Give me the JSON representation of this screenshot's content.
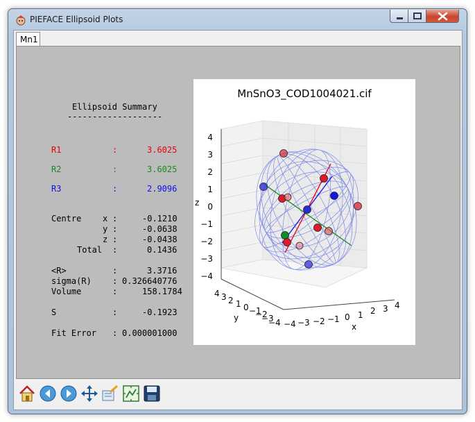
{
  "window": {
    "title": "PIEFACE Ellipsoid Plots"
  },
  "tabs": [
    {
      "label": "Mn1"
    }
  ],
  "summary": {
    "heading": "Ellipsoid Summary",
    "rule": "-------------------",
    "radii": [
      {
        "label": "R1",
        "sep": ":",
        "value": "3.6025",
        "color": "#e8000b"
      },
      {
        "label": "R2",
        "sep": ":",
        "value": "3.6025",
        "color": "#1a8a1a"
      },
      {
        "label": "R3",
        "sep": ":",
        "value": "2.9096",
        "color": "#1010ee"
      }
    ],
    "centre": {
      "label": "Centre",
      "rows": [
        {
          "axis": "x",
          "value": "-0.1210"
        },
        {
          "axis": "y",
          "value": "-0.0638"
        },
        {
          "axis": "z",
          "value": "-0.0438"
        },
        {
          "axis": "Total",
          "value": "0.1436"
        }
      ]
    },
    "stats": [
      {
        "label": "<R>",
        "value": "3.3716"
      },
      {
        "label": "sigma(R)",
        "value": "0.326640776"
      },
      {
        "label": "Volume",
        "value": "158.1784"
      }
    ],
    "s": {
      "label": "S",
      "value": "-0.1923"
    },
    "fit_error": {
      "label": "Fit Error",
      "value": "0.000001000"
    }
  },
  "plot": {
    "title": "MnSnO3_COD1004021.cif",
    "x_label": "x",
    "y_label": "y",
    "z_label": "z",
    "z_ticks": [
      "4",
      "3",
      "2",
      "1",
      "0",
      "−1",
      "−2",
      "−3",
      "−4"
    ],
    "y_ticks": [
      "4",
      "3",
      "2",
      "1",
      "0",
      "−1",
      "−2",
      "−3",
      "−4"
    ],
    "x_ticks": [
      "−4",
      "−3",
      "−2",
      "−1",
      "0",
      "1",
      "2",
      "3",
      "4"
    ],
    "ellipsoid_color": "#5a6ae8",
    "axis_colors": [
      "#e8000b",
      "#1a8a1a",
      "#1010ee"
    ]
  },
  "toolbar": {
    "tools": [
      {
        "name": "home-button",
        "icon": "home-icon"
      },
      {
        "name": "back-button",
        "icon": "back-arrow-icon"
      },
      {
        "name": "forward-button",
        "icon": "forward-arrow-icon"
      },
      {
        "name": "pan-button",
        "icon": "move-icon"
      },
      {
        "name": "zoom-button",
        "icon": "zoom-rect-icon"
      },
      {
        "name": "subplots-button",
        "icon": "subplots-icon"
      },
      {
        "name": "save-button",
        "icon": "save-icon"
      }
    ]
  }
}
